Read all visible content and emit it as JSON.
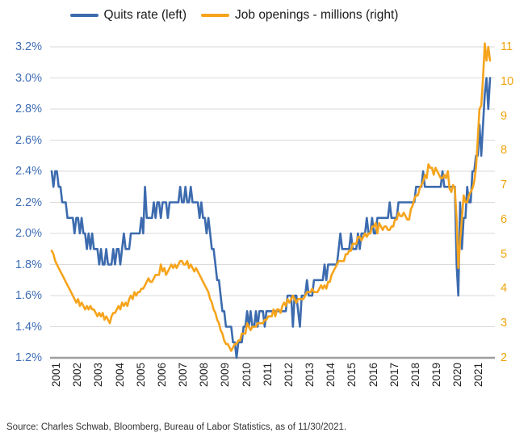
{
  "source": "Source: Charles Schwab, Bloomberg, Bureau of Labor Statistics, as of 11/30/2021.",
  "chart_data": {
    "type": "line",
    "frequency": "monthly",
    "x_start": "2001-01",
    "x_end": "2021-10",
    "grid": "horizontal",
    "grid_color": "#DADADA",
    "axis_line_color": "#9E9E9E",
    "legend_position": "top",
    "x_tick_labels": [
      "2001",
      "2002",
      "2003",
      "2004",
      "2005",
      "2006",
      "2007",
      "2008",
      "2009",
      "2010",
      "2011",
      "2012",
      "2013",
      "2014",
      "2015",
      "2016",
      "2017",
      "2018",
      "2019",
      "2020",
      "2021"
    ],
    "left_axis": {
      "label": "Quits rate",
      "unit": "%",
      "min": 1.2,
      "max": 3.2,
      "color": "#3E6DB5",
      "tick_labels": [
        "3.2%",
        "3.0%",
        "2.8%",
        "2.6%",
        "2.4%",
        "2.2%",
        "2.0%",
        "1.8%",
        "1.6%",
        "1.4%",
        "1.2%"
      ]
    },
    "right_axis": {
      "label": "Job openings - millions",
      "unit": "millions",
      "min": 2,
      "max": 11,
      "color": "#F0A30A",
      "tick_labels": [
        "11",
        "10",
        "9",
        "8",
        "7",
        "6",
        "5",
        "4",
        "3",
        "2"
      ]
    },
    "series": [
      {
        "id": "quits-rate",
        "name": "Quits rate (left)",
        "axis": "left",
        "color": "#3C6BAE",
        "values": [
          2.4,
          2.3,
          2.4,
          2.4,
          2.3,
          2.3,
          2.2,
          2.2,
          2.2,
          2.1,
          2.1,
          2.1,
          2.1,
          2.0,
          2.1,
          2.1,
          2.0,
          2.1,
          2.0,
          2.0,
          1.9,
          2.0,
          1.9,
          2.0,
          1.9,
          1.9,
          1.9,
          1.8,
          1.9,
          1.8,
          1.8,
          1.9,
          1.8,
          1.8,
          1.8,
          1.9,
          1.8,
          1.9,
          1.9,
          1.8,
          1.9,
          2.0,
          1.9,
          1.9,
          1.9,
          2.0,
          2.0,
          2.0,
          2.0,
          2.0,
          2.0,
          2.1,
          2.0,
          2.3,
          2.1,
          2.1,
          2.1,
          2.1,
          2.2,
          2.1,
          2.2,
          2.2,
          2.1,
          2.2,
          2.2,
          2.2,
          2.1,
          2.2,
          2.2,
          2.2,
          2.2,
          2.2,
          2.2,
          2.3,
          2.2,
          2.2,
          2.3,
          2.2,
          2.2,
          2.3,
          2.2,
          2.2,
          2.2,
          2.2,
          2.1,
          2.2,
          2.1,
          2.1,
          2.0,
          2.1,
          2.0,
          1.9,
          1.9,
          1.8,
          1.7,
          1.7,
          1.6,
          1.5,
          1.5,
          1.4,
          1.4,
          1.4,
          1.4,
          1.3,
          1.3,
          1.2,
          1.3,
          1.3,
          1.3,
          1.4,
          1.4,
          1.5,
          1.4,
          1.5,
          1.4,
          1.4,
          1.5,
          1.4,
          1.5,
          1.5,
          1.5,
          1.4,
          1.5,
          1.5,
          1.5,
          1.5,
          1.5,
          1.5,
          1.5,
          1.5,
          1.5,
          1.5,
          1.5,
          1.5,
          1.6,
          1.6,
          1.6,
          1.4,
          1.6,
          1.6,
          1.5,
          1.4,
          1.6,
          1.6,
          1.6,
          1.7,
          1.6,
          1.6,
          1.6,
          1.7,
          1.7,
          1.7,
          1.7,
          1.7,
          1.7,
          1.8,
          1.7,
          1.8,
          1.8,
          1.8,
          1.8,
          1.8,
          1.8,
          1.9,
          2.0,
          1.9,
          1.9,
          1.9,
          1.9,
          1.9,
          2.0,
          1.9,
          1.9,
          1.9,
          2.0,
          1.9,
          2.0,
          2.0,
          2.0,
          2.1,
          2.0,
          2.0,
          2.1,
          2.0,
          2.0,
          2.1,
          2.1,
          2.1,
          2.1,
          2.1,
          2.1,
          2.1,
          2.2,
          2.1,
          2.1,
          2.1,
          2.1,
          2.2,
          2.2,
          2.2,
          2.2,
          2.2,
          2.2,
          2.2,
          2.2,
          2.2,
          2.2,
          2.3,
          2.3,
          2.3,
          2.3,
          2.4,
          2.3,
          2.3,
          2.3,
          2.3,
          2.3,
          2.3,
          2.3,
          2.3,
          2.3,
          2.3,
          2.4,
          2.3,
          2.3,
          2.3,
          2.3,
          2.3,
          2.3,
          2.3,
          1.8,
          1.6,
          2.2,
          1.9,
          2.1,
          2.1,
          2.3,
          2.2,
          2.2,
          2.4,
          2.4,
          2.5,
          2.5,
          2.7,
          2.5,
          2.7,
          2.9,
          3.0,
          2.8,
          3.0
        ]
      },
      {
        "id": "job-openings",
        "name": "Job openings - millions (right)",
        "axis": "right",
        "color": "#F6A41C",
        "values": [
          5.1,
          5.0,
          4.8,
          4.7,
          4.6,
          4.5,
          4.4,
          4.3,
          4.2,
          4.1,
          4.0,
          3.9,
          3.8,
          3.7,
          3.6,
          3.7,
          3.5,
          3.6,
          3.5,
          3.4,
          3.5,
          3.4,
          3.5,
          3.4,
          3.4,
          3.3,
          3.2,
          3.3,
          3.2,
          3.3,
          3.1,
          3.2,
          3.1,
          3.0,
          3.2,
          3.3,
          3.3,
          3.4,
          3.5,
          3.4,
          3.6,
          3.5,
          3.6,
          3.5,
          3.7,
          3.8,
          3.7,
          3.9,
          3.8,
          3.9,
          3.9,
          4.0,
          4.0,
          4.1,
          4.2,
          4.3,
          4.2,
          4.2,
          4.3,
          4.4,
          4.4,
          4.4,
          4.7,
          4.5,
          4.6,
          4.4,
          4.5,
          4.6,
          4.7,
          4.6,
          4.7,
          4.6,
          4.7,
          4.8,
          4.8,
          4.7,
          4.7,
          4.8,
          4.6,
          4.7,
          4.6,
          4.5,
          4.6,
          4.5,
          4.4,
          4.3,
          4.2,
          4.1,
          4.0,
          3.9,
          3.7,
          3.6,
          3.4,
          3.3,
          3.1,
          3.0,
          2.8,
          2.7,
          2.5,
          2.4,
          2.4,
          2.3,
          2.2,
          2.3,
          2.4,
          2.4,
          2.5,
          2.5,
          2.7,
          2.7,
          2.7,
          3.0,
          2.9,
          2.8,
          2.9,
          2.9,
          2.9,
          3.0,
          3.0,
          3.0,
          3.0,
          3.1,
          3.1,
          3.2,
          3.2,
          3.2,
          3.4,
          3.2,
          3.4,
          3.4,
          3.3,
          3.5,
          3.6,
          3.5,
          3.7,
          3.6,
          3.7,
          3.8,
          3.7,
          3.6,
          3.7,
          3.7,
          3.7,
          3.7,
          3.8,
          3.9,
          3.9,
          3.9,
          4.0,
          3.9,
          3.9,
          3.9,
          4.0,
          4.1,
          4.0,
          4.1,
          4.0,
          4.2,
          4.2,
          4.4,
          4.5,
          4.6,
          4.7,
          4.8,
          4.8,
          4.8,
          4.8,
          5.0,
          5.0,
          5.1,
          5.1,
          5.3,
          5.3,
          5.3,
          5.5,
          5.5,
          5.4,
          5.5,
          5.6,
          5.5,
          5.6,
          5.6,
          5.8,
          5.8,
          5.9,
          5.6,
          5.9,
          5.8,
          5.7,
          5.8,
          5.8,
          5.7,
          5.7,
          5.8,
          5.8,
          6.0,
          6.0,
          6.2,
          6.1,
          6.1,
          6.2,
          6.1,
          6.0,
          6.0,
          6.3,
          6.4,
          6.6,
          6.7,
          6.7,
          6.9,
          7.0,
          7.1,
          7.3,
          7.2,
          7.6,
          7.5,
          7.5,
          7.3,
          7.5,
          7.4,
          7.3,
          7.2,
          7.2,
          7.3,
          7.2,
          7.4,
          6.9,
          6.8,
          7.0,
          6.9,
          6.0,
          4.6,
          5.4,
          6.0,
          6.7,
          6.5,
          6.5,
          6.7,
          6.8,
          6.9,
          7.1,
          7.5,
          8.3,
          9.2,
          9.3,
          10.1,
          11.1,
          10.6,
          11.0,
          10.6
        ]
      }
    ]
  }
}
